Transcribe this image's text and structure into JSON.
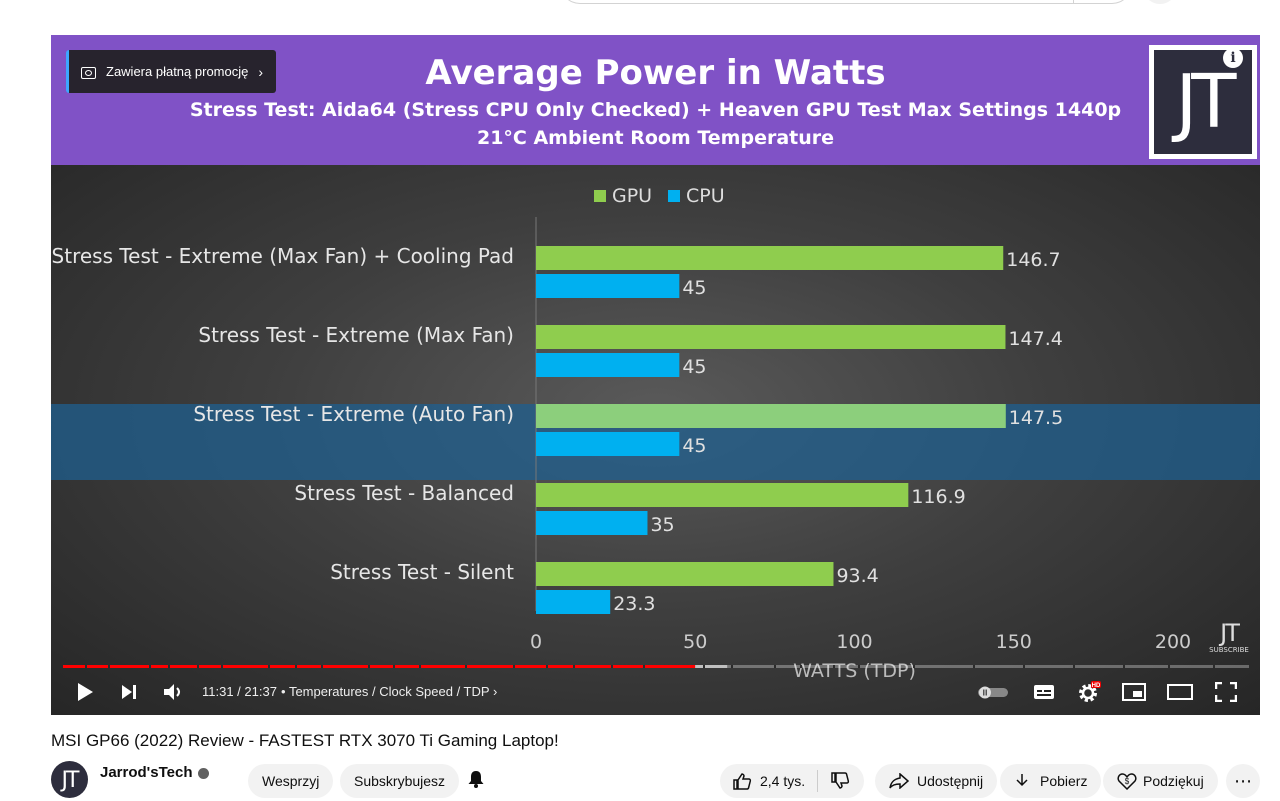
{
  "ad_badge": {
    "label": "Zawiera płatną promocję"
  },
  "video_frame": {
    "title": "Average Power in Watts",
    "subtitle1": "Stress Test: Aida64 (Stress CPU Only Checked) + Heaven GPU Test Max Settings 1440p",
    "subtitle2": "21°C Ambient Room Temperature",
    "logo_text": "JT",
    "small_logo_text": "JT",
    "small_logo_sub": "SUBSCRIBE",
    "info_label": "i"
  },
  "chart_data": {
    "type": "bar",
    "orientation": "horizontal",
    "categories": [
      "Stress Test - Extreme (Max Fan) + Cooling Pad",
      "Stress Test - Extreme (Max Fan)",
      "Stress Test - Extreme (Auto Fan)",
      "Stress Test - Balanced",
      "Stress Test - Silent"
    ],
    "series": [
      {
        "name": "GPU",
        "color": "#8fcd4e",
        "values": [
          146.7,
          147.4,
          147.5,
          116.9,
          93.4
        ]
      },
      {
        "name": "CPU",
        "color": "#00b0f0",
        "values": [
          45,
          45,
          45,
          35,
          23.3
        ]
      }
    ],
    "xlabel": "WATTS (TDP)",
    "xlim": [
      0,
      200
    ],
    "xticks": [
      0,
      50,
      100,
      150,
      200
    ],
    "legend": "top",
    "highlighted_category": "Stress Test - Extreme (Auto Fan)"
  },
  "player": {
    "time": "11:31 / 21:37",
    "chapter": "Temperatures / Clock Speed / TDP",
    "progress_played_fraction": 0.533,
    "progress_buffered_fraction": 0.56,
    "hd_badge": "HD"
  },
  "below": {
    "video_title": "MSI GP66 (2022) Review - FASTEST RTX 3070 Ti Gaming Laptop!",
    "channel_name": "Jarrod'sTech",
    "avatar_text": "JT",
    "join_label": "Wesprzyj",
    "subscribe_label": "Subskrybujesz",
    "likes": "2,4 tys.",
    "share_label": "Udostępnij",
    "download_label": "Pobierz",
    "thanks_label": "Podziękuj"
  }
}
